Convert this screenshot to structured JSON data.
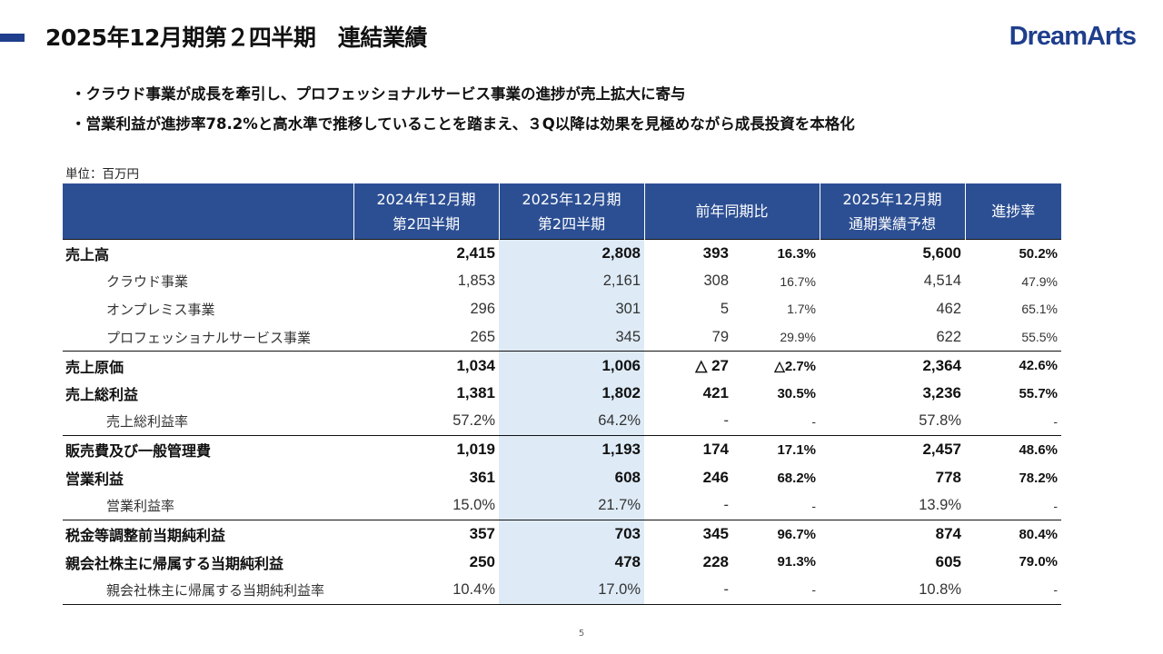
{
  "title": "2025年12月期第２四半期　連結業績",
  "logo": "DreamArts",
  "bullets": [
    "・クラウド事業が成長を牽引し、プロフェッショナルサービス事業の進捗が売上拡大に寄与",
    "・営業利益が進捗率78.2%と高水準で推移していることを踏まえ、３Q以降は効果を見極めながら成長投資を本格化"
  ],
  "unit": "単位：百万円",
  "headers": {
    "col1": [
      "2024年12月期",
      "第2四半期"
    ],
    "col2": [
      "2025年12月期",
      "第2四半期"
    ],
    "col3": "前年同期比",
    "col4": [
      "2025年12月期",
      "通期業績予想"
    ],
    "col5": "進捗率"
  },
  "rows": [
    {
      "label": "売上高",
      "v2024": "2,415",
      "v2025": "2,808",
      "diff": "393",
      "diff_pct": "16.3%",
      "forecast": "5,600",
      "progress": "50.2%"
    },
    {
      "label": "クラウド事業",
      "v2024": "1,853",
      "v2025": "2,161",
      "diff": "308",
      "diff_pct": "16.7%",
      "forecast": "4,514",
      "progress": "47.9%"
    },
    {
      "label": "オンプレミス事業",
      "v2024": "296",
      "v2025": "301",
      "diff": "5",
      "diff_pct": "1.7%",
      "forecast": "462",
      "progress": "65.1%"
    },
    {
      "label": "プロフェッショナルサービス事業",
      "v2024": "265",
      "v2025": "345",
      "diff": "79",
      "diff_pct": "29.9%",
      "forecast": "622",
      "progress": "55.5%"
    },
    {
      "label": "売上原価",
      "v2024": "1,034",
      "v2025": "1,006",
      "diff": "△ 27",
      "diff_pct": "△2.7%",
      "forecast": "2,364",
      "progress": "42.6%"
    },
    {
      "label": "売上総利益",
      "v2024": "1,381",
      "v2025": "1,802",
      "diff": "421",
      "diff_pct": "30.5%",
      "forecast": "3,236",
      "progress": "55.7%"
    },
    {
      "label": "売上総利益率",
      "v2024": "57.2%",
      "v2025": "64.2%",
      "diff": "-",
      "diff_pct": "-",
      "forecast": "57.8%",
      "progress": "-"
    },
    {
      "label": "販売費及び一般管理費",
      "v2024": "1,019",
      "v2025": "1,193",
      "diff": "174",
      "diff_pct": "17.1%",
      "forecast": "2,457",
      "progress": "48.6%"
    },
    {
      "label": "営業利益",
      "v2024": "361",
      "v2025": "608",
      "diff": "246",
      "diff_pct": "68.2%",
      "forecast": "778",
      "progress": "78.2%"
    },
    {
      "label": "営業利益率",
      "v2024": "15.0%",
      "v2025": "21.7%",
      "diff": "-",
      "diff_pct": "-",
      "forecast": "13.9%",
      "progress": "-"
    },
    {
      "label": "税金等調整前当期純利益",
      "v2024": "357",
      "v2025": "703",
      "diff": "345",
      "diff_pct": "96.7%",
      "forecast": "874",
      "progress": "80.4%"
    },
    {
      "label": "親会社株主に帰属する当期純利益",
      "v2024": "250",
      "v2025": "478",
      "diff": "228",
      "diff_pct": "91.3%",
      "forecast": "605",
      "progress": "79.0%"
    },
    {
      "label": "親会社株主に帰属する当期純利益率",
      "v2024": "10.4%",
      "v2025": "17.0%",
      "diff": "-",
      "diff_pct": "-",
      "forecast": "10.8%",
      "progress": "-"
    }
  ],
  "page_number": "5",
  "colors": {
    "accent": "#1f3e8c",
    "header_bg": "#2c4f93",
    "highlight": "#deebf7"
  }
}
